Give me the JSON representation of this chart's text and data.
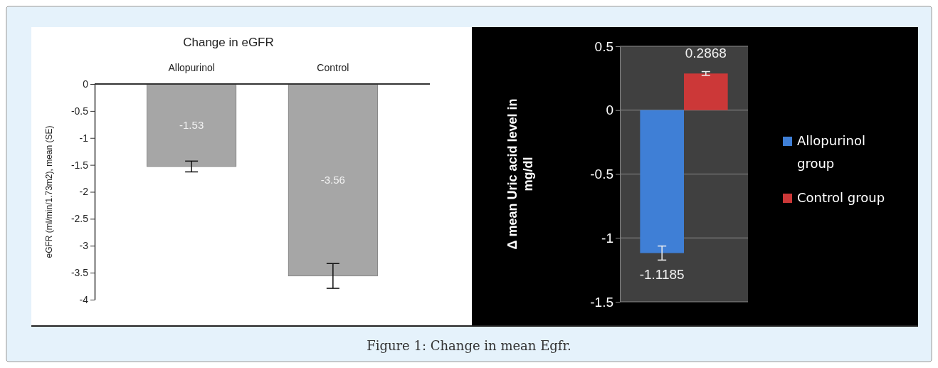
{
  "chart_data": [
    {
      "type": "bar",
      "title": "Change in eGFR",
      "ylabel": "eGFR (ml/min/1.73m2), mean (SE)",
      "categories": [
        "Allopurinol",
        "Control"
      ],
      "values": [
        -1.53,
        -3.56
      ],
      "errors": [
        0.1,
        0.23
      ],
      "color": "#a6a6a6",
      "data_labels": true,
      "ylim": [
        -4,
        0
      ],
      "yticks": [
        0,
        -0.5,
        -1,
        -1.5,
        -2,
        -2.5,
        -3,
        -3.5,
        -4
      ],
      "grid": false
    },
    {
      "type": "bar",
      "ylabel": "Δ mean Uric acid level in mg/dl",
      "categories": [
        null
      ],
      "series": [
        {
          "name": "Allopurinol group",
          "color": "#3f7fd6",
          "values": [
            -1.1185
          ],
          "errors": [
            0.055
          ]
        },
        {
          "name": "Control group",
          "color": "#cc3838",
          "values": [
            0.2868
          ],
          "errors": [
            0.015
          ]
        }
      ],
      "data_labels": true,
      "ylim": [
        -1.5,
        0.5
      ],
      "yticks": [
        0.5,
        0,
        -0.5,
        -1,
        -1.5
      ],
      "grid": "y",
      "legend": "right",
      "annotations": [
        "Figure 1: Change in mean Egfr."
      ]
    }
  ]
}
